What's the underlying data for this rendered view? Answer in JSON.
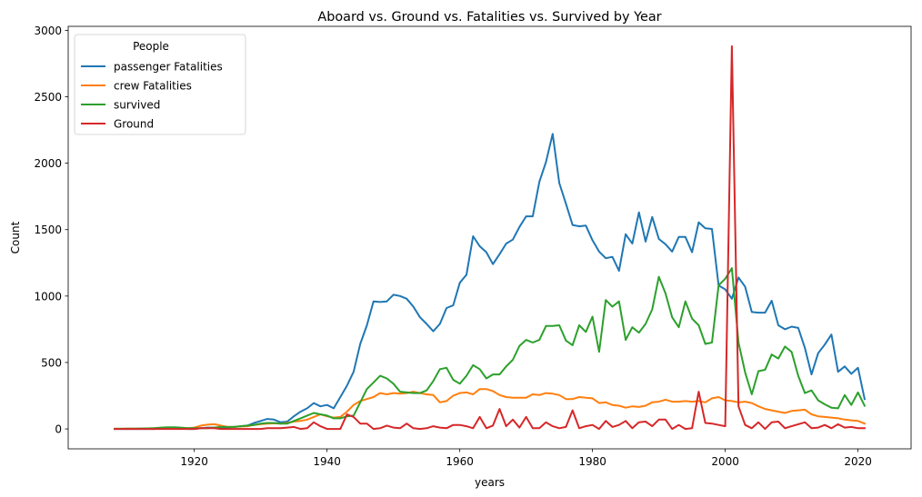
{
  "chart_data": {
    "type": "line",
    "title": "Aboard vs. Ground vs. Fatalities vs. Survived by Year",
    "xlabel": "years",
    "ylabel": "Count",
    "xlim": [
      1901,
      2028
    ],
    "ylim": [
      -150,
      3030
    ],
    "xticks": [
      1920,
      1940,
      1960,
      1980,
      2000,
      2020
    ],
    "yticks": [
      0,
      500,
      1000,
      1500,
      2000,
      2500,
      3000
    ],
    "grid": false,
    "legend": {
      "title": "People",
      "placement": "top-left"
    },
    "x": [
      1908,
      1909,
      1910,
      1911,
      1912,
      1913,
      1914,
      1915,
      1916,
      1917,
      1918,
      1919,
      1920,
      1921,
      1922,
      1923,
      1924,
      1925,
      1926,
      1927,
      1928,
      1929,
      1930,
      1931,
      1932,
      1933,
      1934,
      1935,
      1936,
      1937,
      1938,
      1939,
      1940,
      1941,
      1942,
      1943,
      1944,
      1945,
      1946,
      1947,
      1948,
      1949,
      1950,
      1951,
      1952,
      1953,
      1954,
      1955,
      1956,
      1957,
      1958,
      1959,
      1960,
      1961,
      1962,
      1963,
      1964,
      1965,
      1966,
      1967,
      1968,
      1969,
      1970,
      1971,
      1972,
      1973,
      1974,
      1975,
      1976,
      1977,
      1978,
      1979,
      1980,
      1981,
      1982,
      1983,
      1984,
      1985,
      1986,
      1987,
      1988,
      1989,
      1990,
      1991,
      1992,
      1993,
      1994,
      1995,
      1996,
      1997,
      1998,
      1999,
      2000,
      2001,
      2002,
      2003,
      2004,
      2005,
      2006,
      2007,
      2008,
      2009,
      2010,
      2011,
      2012,
      2013,
      2014,
      2015,
      2016,
      2017,
      2018,
      2019,
      2020,
      2021
    ],
    "series": [
      {
        "name": "passenger Fatalities",
        "color": "#1f77b4",
        "values": [
          0,
          0,
          0,
          0,
          0,
          0,
          0,
          5,
          5,
          5,
          5,
          0,
          0,
          5,
          10,
          10,
          10,
          10,
          15,
          20,
          25,
          45,
          60,
          75,
          70,
          50,
          55,
          95,
          130,
          155,
          195,
          170,
          180,
          155,
          240,
          325,
          430,
          640,
          780,
          960,
          955,
          960,
          1010,
          1000,
          980,
          920,
          840,
          790,
          735,
          790,
          910,
          930,
          1100,
          1160,
          1450,
          1375,
          1330,
          1240,
          1315,
          1395,
          1425,
          1520,
          1600,
          1600,
          1860,
          2010,
          2220,
          1850,
          1695,
          1535,
          1525,
          1530,
          1420,
          1335,
          1285,
          1295,
          1190,
          1465,
          1395,
          1630,
          1410,
          1595,
          1430,
          1390,
          1335,
          1445,
          1445,
          1330,
          1555,
          1510,
          1505,
          1080,
          1050,
          980,
          1140,
          1070,
          880,
          875,
          875,
          965,
          780,
          750,
          770,
          760,
          610,
          410,
          570,
          635,
          710,
          430,
          470,
          415,
          460,
          225
        ]
      },
      {
        "name": "crew Fatalities",
        "color": "#ff7f0e",
        "values": [
          1,
          1,
          2,
          2,
          3,
          4,
          5,
          8,
          7,
          7,
          6,
          5,
          10,
          25,
          32,
          35,
          25,
          15,
          15,
          18,
          20,
          30,
          35,
          40,
          42,
          40,
          45,
          55,
          60,
          70,
          90,
          110,
          95,
          85,
          90,
          130,
          180,
          210,
          225,
          240,
          270,
          260,
          270,
          265,
          270,
          280,
          270,
          260,
          255,
          200,
          210,
          250,
          270,
          275,
          260,
          300,
          300,
          285,
          255,
          240,
          235,
          235,
          235,
          260,
          255,
          270,
          265,
          255,
          225,
          225,
          240,
          235,
          230,
          195,
          200,
          180,
          175,
          160,
          170,
          165,
          175,
          200,
          205,
          220,
          205,
          205,
          210,
          205,
          210,
          200,
          230,
          240,
          215,
          210,
          200,
          205,
          195,
          170,
          150,
          140,
          130,
          120,
          135,
          140,
          145,
          110,
          95,
          90,
          85,
          80,
          70,
          65,
          60,
          40
        ]
      },
      {
        "name": "survived",
        "color": "#2ca02c",
        "values": [
          1,
          1,
          2,
          2,
          3,
          4,
          5,
          10,
          12,
          12,
          10,
          6,
          5,
          5,
          5,
          10,
          15,
          15,
          15,
          20,
          25,
          30,
          40,
          45,
          45,
          40,
          40,
          60,
          80,
          100,
          120,
          110,
          100,
          80,
          80,
          95,
          100,
          200,
          300,
          350,
          400,
          380,
          340,
          280,
          275,
          270,
          270,
          290,
          360,
          450,
          460,
          370,
          340,
          400,
          480,
          450,
          380,
          410,
          410,
          470,
          520,
          625,
          670,
          650,
          670,
          775,
          775,
          780,
          665,
          630,
          780,
          730,
          845,
          580,
          970,
          920,
          960,
          670,
          765,
          725,
          790,
          900,
          1145,
          1020,
          840,
          765,
          960,
          830,
          780,
          640,
          650,
          1080,
          1130,
          1210,
          650,
          425,
          260,
          435,
          445,
          560,
          530,
          620,
          580,
          400,
          270,
          290,
          215,
          185,
          160,
          155,
          255,
          180,
          275,
          175
        ]
      },
      {
        "name": "Ground",
        "color": "#d62728",
        "values": [
          0,
          0,
          0,
          0,
          0,
          0,
          0,
          0,
          0,
          0,
          0,
          0,
          0,
          5,
          5,
          5,
          0,
          0,
          0,
          0,
          0,
          0,
          0,
          5,
          5,
          5,
          10,
          15,
          0,
          5,
          50,
          20,
          0,
          0,
          0,
          110,
          90,
          40,
          40,
          0,
          5,
          25,
          10,
          5,
          40,
          5,
          0,
          5,
          20,
          10,
          5,
          30,
          30,
          20,
          5,
          90,
          5,
          25,
          150,
          20,
          70,
          10,
          90,
          5,
          5,
          50,
          20,
          5,
          15,
          140,
          5,
          20,
          30,
          0,
          60,
          15,
          30,
          60,
          5,
          50,
          55,
          20,
          70,
          70,
          0,
          30,
          0,
          5,
          280,
          45,
          40,
          30,
          20,
          2880,
          170,
          30,
          5,
          50,
          0,
          50,
          55,
          5,
          20,
          35,
          50,
          5,
          10,
          30,
          5,
          35,
          10,
          15,
          5,
          5
        ]
      }
    ]
  }
}
